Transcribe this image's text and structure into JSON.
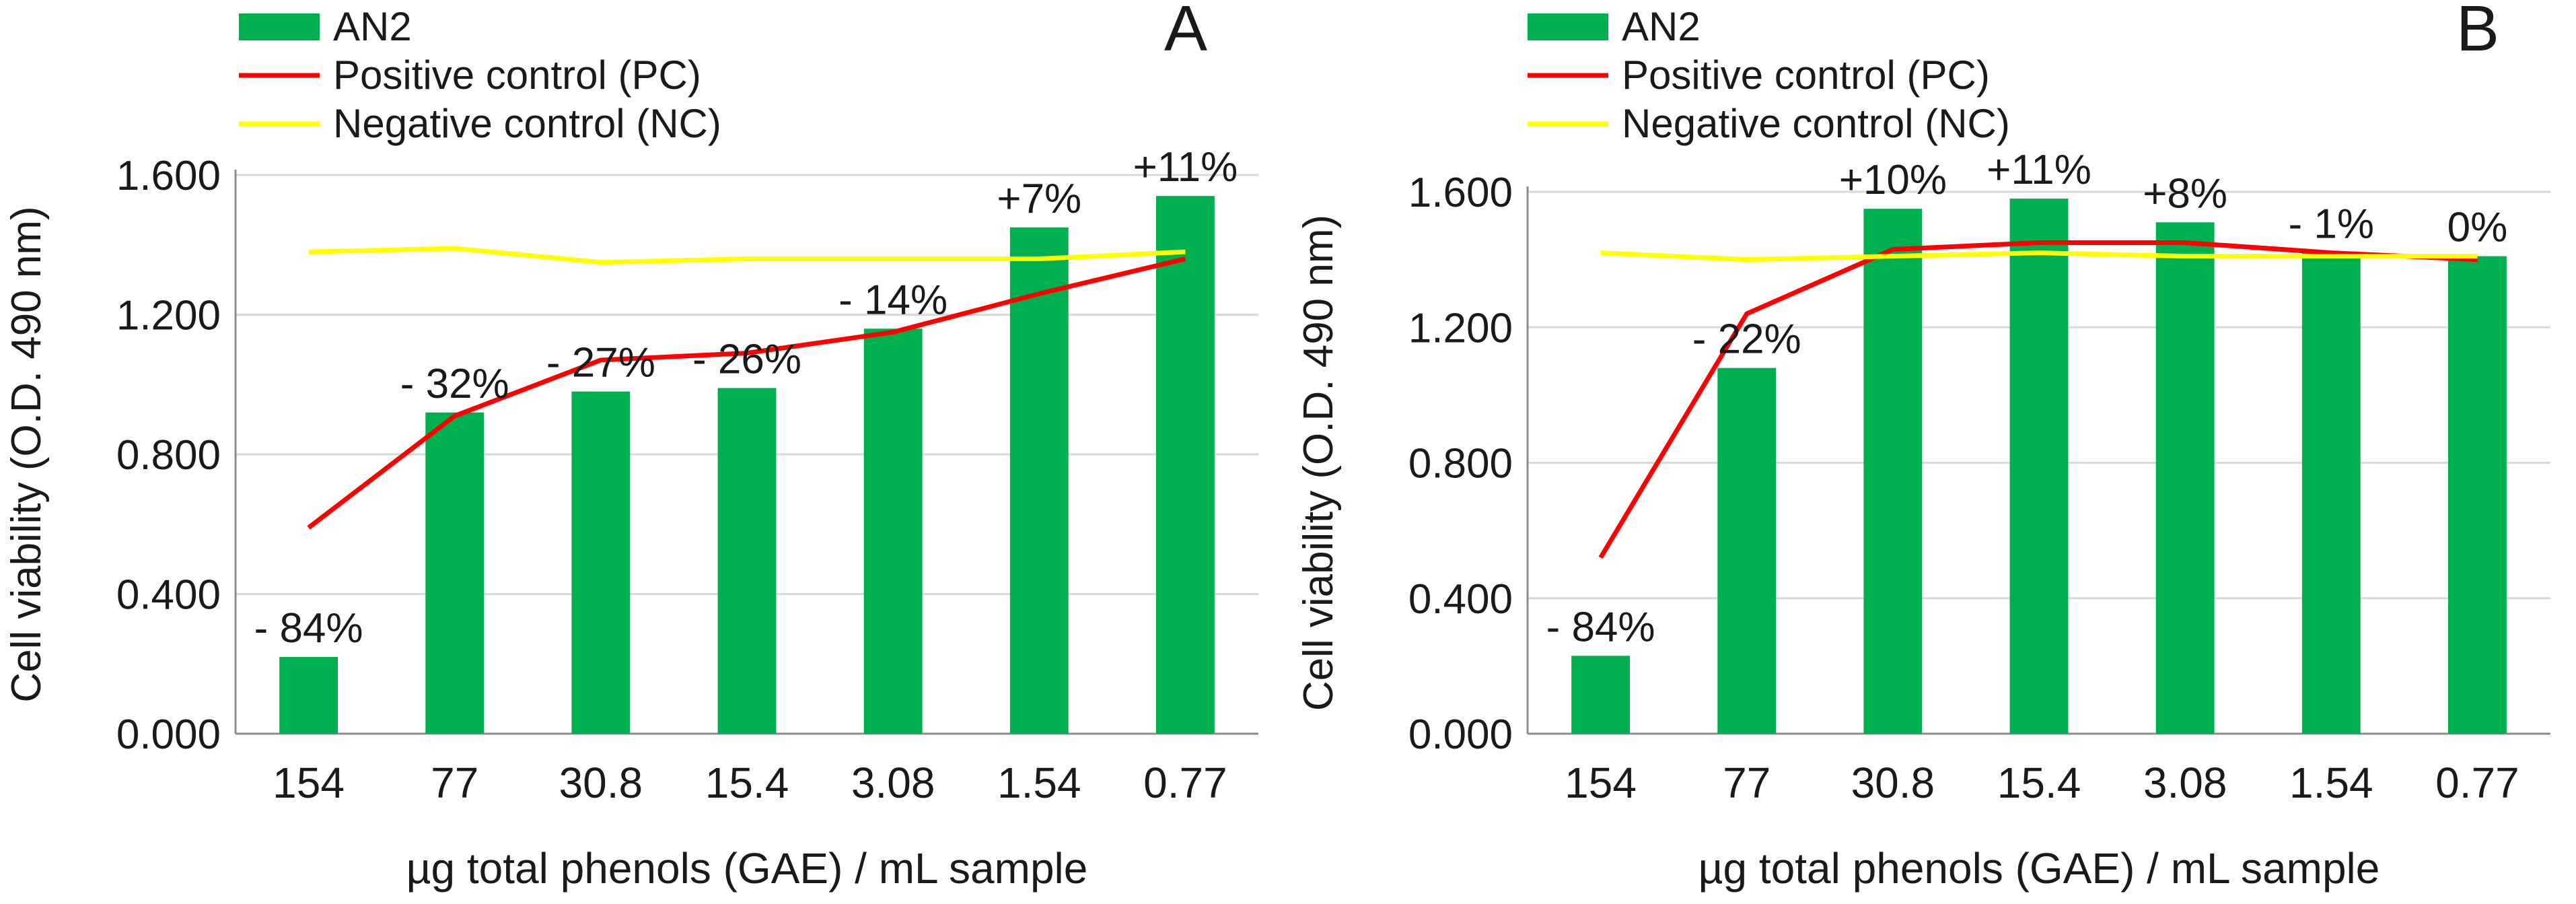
{
  "chart_data": [
    {
      "panel_label": "A",
      "type": "bar",
      "xlabel": "µg total phenols (GAE) / mL sample",
      "ylabel": "Cell viability (O.D. 490 nm)",
      "ylim": [
        0,
        1.6
      ],
      "yticks": [
        "0.000",
        "0.400",
        "0.800",
        "1.200",
        "1.600"
      ],
      "categories": [
        "154",
        "77",
        "30.8",
        "15.4",
        "3.08",
        "1.54",
        "0.77"
      ],
      "series": [
        {
          "name": "AN2",
          "kind": "bar",
          "color": "#00b050",
          "values": [
            0.22,
            0.92,
            0.98,
            0.99,
            1.16,
            1.45,
            1.54
          ],
          "labels": [
            "- 84%",
            "- 32%",
            "- 27%",
            "- 26%",
            "- 14%",
            "+7%",
            "+11%"
          ]
        },
        {
          "name": "Positive control (PC)",
          "kind": "line",
          "color": "#ff0000",
          "values": [
            0.59,
            0.91,
            1.07,
            1.09,
            1.15,
            1.26,
            1.36
          ]
        },
        {
          "name": "Negative control (NC)",
          "kind": "line",
          "color": "#ffff00",
          "values": [
            1.38,
            1.39,
            1.35,
            1.36,
            1.36,
            1.36,
            1.38
          ]
        }
      ]
    },
    {
      "panel_label": "B",
      "type": "bar",
      "xlabel": "µg total phenols (GAE) / mL sample",
      "ylabel": "Cell viability (O.D. 490 nm)",
      "ylim": [
        0,
        1.6
      ],
      "yticks": [
        "0.000",
        "0.400",
        "0.800",
        "1.200",
        "1.600"
      ],
      "categories": [
        "154",
        "77",
        "30.8",
        "15.4",
        "3.08",
        "1.54",
        "0.77"
      ],
      "series": [
        {
          "name": "AN2",
          "kind": "bar",
          "color": "#00b050",
          "values": [
            0.23,
            1.08,
            1.55,
            1.58,
            1.51,
            1.42,
            1.41
          ],
          "labels": [
            "- 84%",
            "- 22%",
            "+10%",
            "+11%",
            "+8%",
            "- 1%",
            "0%"
          ]
        },
        {
          "name": "Positive control (PC)",
          "kind": "line",
          "color": "#ff0000",
          "values": [
            0.52,
            1.24,
            1.43,
            1.45,
            1.45,
            1.42,
            1.4
          ]
        },
        {
          "name": "Negative control (NC)",
          "kind": "line",
          "color": "#ffff00",
          "values": [
            1.42,
            1.4,
            1.41,
            1.42,
            1.41,
            1.41,
            1.41
          ]
        }
      ]
    }
  ]
}
